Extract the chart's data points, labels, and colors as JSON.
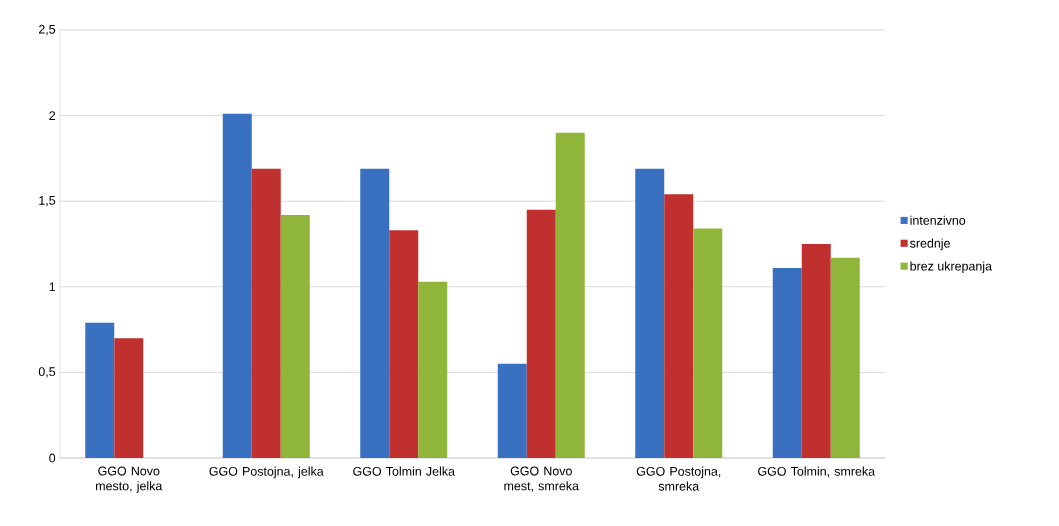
{
  "chart_data": {
    "type": "bar",
    "categories": [
      "GGO Novo mesto, jelka",
      "GGO Postojna, jelka",
      "GGO Tolmin Jelka",
      "GGO Novo mest, smreka",
      "GGO Postojna, smreka",
      "GGO Tolmin, smreka"
    ],
    "series": [
      {
        "name": "intenzivno",
        "color": "#3a70c0",
        "values": [
          0.79,
          2.01,
          1.69,
          0.55,
          1.69,
          1.11
        ]
      },
      {
        "name": "srednje",
        "color": "#c0302e",
        "values": [
          0.7,
          1.69,
          1.33,
          1.45,
          1.54,
          1.25
        ]
      },
      {
        "name": "brez ukrepanja",
        "color": "#8fb53a",
        "values": [
          null,
          1.42,
          1.03,
          1.9,
          1.34,
          1.17
        ]
      }
    ],
    "ylim": [
      0,
      2.5
    ],
    "yticks": [
      0,
      {
        "value": 0.5,
        "label": "0,5"
      },
      1,
      {
        "value": 1.5,
        "label": "1,5"
      },
      2,
      {
        "value": 2.5,
        "label": "2,5"
      }
    ],
    "grid": "y",
    "legend": "right"
  }
}
